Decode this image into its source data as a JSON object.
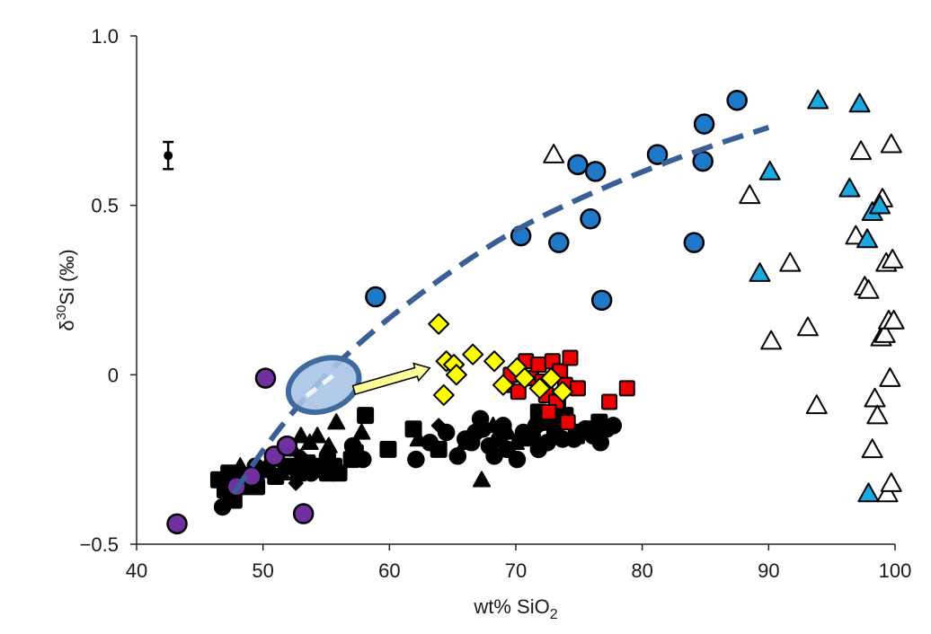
{
  "chart_data": {
    "type": "scatter",
    "title": "",
    "xlabel": {
      "main": "wt% SiO",
      "sub": "2"
    },
    "ylabel": {
      "delta": "δ",
      "sup": "30",
      "main": "Si (‰)"
    },
    "xlim": [
      40,
      100
    ],
    "ylim": [
      -0.5,
      1.0
    ],
    "x_ticks": [
      40,
      50,
      60,
      70,
      80,
      90,
      100
    ],
    "y_ticks": [
      -0.5,
      0,
      0.5,
      1.0
    ],
    "x_tick_labels": [
      "40",
      "50",
      "60",
      "70",
      "80",
      "90",
      "100"
    ],
    "y_tick_labels": [
      "−0.5",
      "0",
      "0.5",
      "1.0"
    ],
    "grid": false,
    "legend": "none",
    "colors": {
      "blue": "#1f78c8",
      "purple": "#7030a0",
      "yellow": "#ffff00",
      "red": "#ee0000",
      "cyan": "#1aa8e0",
      "black": "#000000",
      "trend": "#3a5f94",
      "ellipse": "#3f6aa0",
      "ellipse_fill": "#a9c4e4",
      "arrow_fill": "#ffff99"
    },
    "series": [
      {
        "name": "blue-circles",
        "marker": "circle",
        "color": "#1f78c8",
        "points": [
          [
            58.9,
            0.23
          ],
          [
            70.4,
            0.41
          ],
          [
            73.4,
            0.39
          ],
          [
            74.9,
            0.62
          ],
          [
            76.3,
            0.6
          ],
          [
            75.9,
            0.46
          ],
          [
            76.8,
            0.22
          ],
          [
            81.2,
            0.65
          ],
          [
            84.1,
            0.39
          ],
          [
            84.8,
            0.63
          ],
          [
            84.9,
            0.74
          ],
          [
            87.5,
            0.81
          ]
        ]
      },
      {
        "name": "purple-circles",
        "marker": "circle",
        "color": "#7030a0",
        "points": [
          [
            43.2,
            -0.44
          ],
          [
            47.9,
            -0.33
          ],
          [
            49.1,
            -0.3
          ],
          [
            50.2,
            -0.01
          ],
          [
            50.9,
            -0.24
          ],
          [
            51.9,
            -0.21
          ],
          [
            53.2,
            -0.41
          ]
        ]
      },
      {
        "name": "yellow-diamonds",
        "marker": "diamond",
        "color": "#ffff00",
        "points": [
          [
            63.9,
            0.15
          ],
          [
            64.3,
            -0.06
          ],
          [
            64.5,
            0.04
          ],
          [
            65.1,
            0.03
          ],
          [
            65.3,
            0.0
          ],
          [
            66.6,
            0.06
          ],
          [
            68.3,
            0.04
          ],
          [
            69.0,
            -0.03
          ],
          [
            70.1,
            0.02
          ],
          [
            70.7,
            -0.01
          ],
          [
            71.9,
            -0.04
          ],
          [
            72.8,
            -0.01
          ],
          [
            73.7,
            -0.05
          ]
        ]
      },
      {
        "name": "red-squares",
        "marker": "square",
        "color": "#ee0000",
        "points": [
          [
            69.3,
            -0.03
          ],
          [
            69.6,
            0.0
          ],
          [
            70.2,
            -0.05
          ],
          [
            70.8,
            0.04
          ],
          [
            71.2,
            -0.01
          ],
          [
            71.8,
            0.03
          ],
          [
            72.1,
            -0.02
          ],
          [
            72.4,
            -0.06
          ],
          [
            72.9,
            0.04
          ],
          [
            73.2,
            -0.08
          ],
          [
            73.5,
            0.01
          ],
          [
            73.9,
            -0.03
          ],
          [
            74.3,
            0.05
          ],
          [
            74.1,
            -0.14
          ],
          [
            74.9,
            -0.04
          ],
          [
            77.4,
            -0.08
          ],
          [
            78.8,
            -0.04
          ],
          [
            72.6,
            -0.11
          ]
        ]
      },
      {
        "name": "cyan-triangles",
        "marker": "triangle",
        "color": "#1aa8e0",
        "points": [
          [
            89.3,
            0.3
          ],
          [
            90.1,
            0.6
          ],
          [
            93.9,
            0.81
          ],
          [
            96.4,
            0.55
          ],
          [
            97.2,
            0.8
          ],
          [
            97.8,
            0.4
          ],
          [
            98.2,
            0.48
          ],
          [
            98.8,
            0.5
          ],
          [
            97.9,
            -0.35
          ]
        ]
      },
      {
        "name": "white-triangles",
        "marker": "triangle",
        "color": "#ffffff",
        "points": [
          [
            73.0,
            0.65
          ],
          [
            88.5,
            0.53
          ],
          [
            90.2,
            0.1
          ],
          [
            91.7,
            0.33
          ],
          [
            93.1,
            0.14
          ],
          [
            93.8,
            -0.09
          ],
          [
            96.9,
            0.41
          ],
          [
            97.3,
            0.66
          ],
          [
            97.6,
            0.26
          ],
          [
            97.9,
            0.25
          ],
          [
            98.2,
            -0.22
          ],
          [
            98.4,
            -0.07
          ],
          [
            98.6,
            -0.12
          ],
          [
            98.9,
            0.11
          ],
          [
            99.0,
            0.52
          ],
          [
            99.2,
            0.12
          ],
          [
            99.3,
            0.33
          ],
          [
            99.4,
            -0.35
          ],
          [
            99.5,
            0.16
          ],
          [
            99.6,
            -0.01
          ],
          [
            99.7,
            0.68
          ],
          [
            99.7,
            -0.32
          ],
          [
            99.8,
            0.34
          ],
          [
            99.9,
            0.16
          ]
        ]
      },
      {
        "name": "black-circles",
        "marker": "circle",
        "color": "#000000",
        "size": "small",
        "points": [
          [
            46.8,
            -0.39
          ],
          [
            48.2,
            -0.3
          ],
          [
            49.4,
            -0.27
          ],
          [
            53.8,
            -0.29
          ],
          [
            55.1,
            -0.24
          ],
          [
            57.1,
            -0.21
          ],
          [
            57.9,
            -0.25
          ],
          [
            62.1,
            -0.25
          ],
          [
            63.2,
            -0.2
          ],
          [
            64.5,
            -0.17
          ],
          [
            65.4,
            -0.24
          ],
          [
            66.0,
            -0.19
          ],
          [
            66.5,
            -0.2
          ],
          [
            67.4,
            -0.16
          ],
          [
            67.9,
            -0.21
          ],
          [
            68.3,
            -0.24
          ],
          [
            68.7,
            -0.19
          ],
          [
            69.3,
            -0.22
          ],
          [
            70.1,
            -0.25
          ],
          [
            70.6,
            -0.17
          ],
          [
            71.3,
            -0.18
          ],
          [
            71.8,
            -0.22
          ],
          [
            72.5,
            -0.2
          ],
          [
            73.1,
            -0.17
          ],
          [
            73.7,
            -0.19
          ],
          [
            74.6,
            -0.19
          ],
          [
            75.5,
            -0.16
          ],
          [
            76.1,
            -0.18
          ],
          [
            76.7,
            -0.2
          ],
          [
            77.2,
            -0.16
          ],
          [
            77.7,
            -0.15
          ],
          [
            74.8,
            -0.17
          ],
          [
            72.2,
            -0.14
          ],
          [
            67.2,
            -0.13
          ],
          [
            69.0,
            -0.15
          ],
          [
            71.6,
            -0.15
          ],
          [
            66.8,
            -0.17
          ]
        ]
      },
      {
        "name": "black-squares",
        "marker": "square",
        "color": "#000000",
        "points": [
          [
            46.5,
            -0.31
          ],
          [
            47.0,
            -0.34
          ],
          [
            47.3,
            -0.29
          ],
          [
            47.7,
            -0.37
          ],
          [
            48.0,
            -0.31
          ],
          [
            48.4,
            -0.33
          ],
          [
            49.0,
            -0.31
          ],
          [
            49.5,
            -0.33
          ],
          [
            50.3,
            -0.28
          ],
          [
            51.0,
            -0.3
          ],
          [
            52.2,
            -0.27
          ],
          [
            52.8,
            -0.29
          ],
          [
            53.5,
            -0.26
          ],
          [
            54.2,
            -0.27
          ],
          [
            54.6,
            -0.28
          ],
          [
            55.1,
            -0.29
          ],
          [
            55.6,
            -0.27
          ],
          [
            56.0,
            -0.29
          ],
          [
            57.0,
            -0.25
          ],
          [
            57.3,
            -0.23
          ],
          [
            58.1,
            -0.12
          ],
          [
            59.9,
            -0.22
          ],
          [
            61.9,
            -0.16
          ],
          [
            63.9,
            -0.22
          ],
          [
            71.8,
            -0.11
          ],
          [
            72.7,
            -0.14
          ],
          [
            73.3,
            -0.09
          ],
          [
            73.9,
            -0.12
          ],
          [
            74.8,
            -0.18
          ],
          [
            75.9,
            -0.16
          ],
          [
            76.6,
            -0.14
          ]
        ]
      },
      {
        "name": "black-triangles",
        "marker": "triangle",
        "color": "#000000",
        "points": [
          [
            48.2,
            -0.27
          ],
          [
            49.3,
            -0.28
          ],
          [
            50.4,
            -0.26
          ],
          [
            51.5,
            -0.29
          ],
          [
            52.4,
            -0.22
          ],
          [
            53.0,
            -0.18
          ],
          [
            53.7,
            -0.2
          ],
          [
            54.3,
            -0.18
          ],
          [
            55.2,
            -0.21
          ],
          [
            55.8,
            -0.14
          ],
          [
            57.8,
            -0.17
          ],
          [
            62.3,
            -0.19
          ],
          [
            66.0,
            -0.2
          ],
          [
            67.3,
            -0.31
          ],
          [
            68.2,
            -0.15
          ],
          [
            69.4,
            -0.17
          ],
          [
            70.0,
            -0.2
          ],
          [
            70.6,
            -0.19
          ],
          [
            73.2,
            -0.16
          ]
        ]
      },
      {
        "name": "black-diamonds",
        "marker": "diamond",
        "color": "#000000",
        "points": [
          [
            50.7,
            -0.26
          ],
          [
            51.4,
            -0.26
          ],
          [
            52.3,
            -0.28
          ],
          [
            53.0,
            -0.24
          ],
          [
            54.9,
            -0.26
          ],
          [
            63.9,
            -0.15
          ],
          [
            52.6,
            -0.32
          ]
        ]
      }
    ],
    "error_bar": {
      "x": 42.5,
      "y": 0.647,
      "low": 0.607,
      "high": 0.687
    },
    "trend_curve": {
      "style": "dashed",
      "points": [
        [
          47.7,
          -0.35
        ],
        [
          50,
          -0.22
        ],
        [
          53,
          -0.08
        ],
        [
          56,
          0.04
        ],
        [
          60,
          0.17
        ],
        [
          65,
          0.31
        ],
        [
          70,
          0.43
        ],
        [
          75,
          0.52
        ],
        [
          80,
          0.6
        ],
        [
          85,
          0.67
        ],
        [
          90,
          0.73
        ]
      ]
    },
    "ellipse": {
      "cx": 54.8,
      "cy": -0.03,
      "rx_data": 2.9,
      "ry_data": 0.075,
      "rotate_deg": -22
    },
    "arrow": {
      "from": [
        57.2,
        -0.045
      ],
      "to": [
        63.2,
        0.02
      ]
    }
  }
}
